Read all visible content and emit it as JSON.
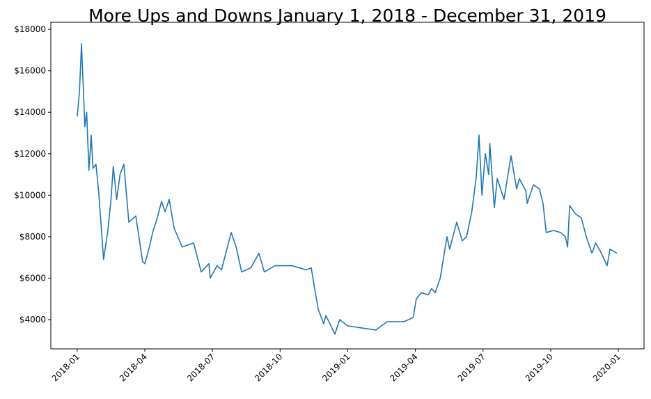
{
  "chart_data": {
    "type": "line",
    "title": "More Ups and Downs January 1, 2018 - December 31, 2019",
    "x": [
      0,
      0.1,
      0.19,
      0.27,
      0.34,
      0.42,
      0.52,
      0.62,
      0.7,
      0.83,
      0.95,
      1.17,
      1.36,
      1.5,
      1.6,
      1.75,
      1.9,
      2.07,
      2.29,
      2.6,
      2.9,
      3.0,
      3.2,
      3.37,
      3.55,
      3.74,
      3.9,
      4.08,
      4.3,
      4.66,
      5.16,
      5.5,
      5.84,
      5.9,
      6.2,
      6.4,
      6.83,
      7.05,
      7.29,
      7.7,
      8.06,
      8.3,
      8.77,
      9.54,
      10.16,
      10.38,
      10.53,
      10.69,
      10.93,
      11.03,
      11.43,
      11.64,
      12.0,
      12.6,
      13.25,
      13.74,
      14.49,
      14.9,
      15.04,
      15.26,
      15.57,
      15.72,
      15.88,
      16.1,
      16.4,
      16.52,
      16.83,
      17.08,
      17.27,
      17.5,
      17.7,
      17.82,
      17.95,
      18.1,
      18.25,
      18.3,
      18.5,
      18.63,
      18.93,
      19.24,
      19.49,
      19.61,
      19.9,
      19.96,
      20.23,
      20.5,
      20.66,
      20.8,
      21.13,
      21.44,
      21.65,
      21.75,
      21.84,
      22.1,
      22.36,
      22.58,
      22.83,
      22.99,
      23.2,
      23.5,
      23.63,
      23.94
    ],
    "series": [
      {
        "color": "#1f77b4",
        "values": [
          13800,
          15000,
          17300,
          15200,
          13300,
          14000,
          11200,
          12900,
          11300,
          11500,
          10200,
          6900,
          8300,
          9800,
          11400,
          9800,
          11000,
          11500,
          8700,
          9000,
          6800,
          6700,
          7500,
          8300,
          8900,
          9700,
          9200,
          9800,
          8400,
          7500,
          7700,
          6300,
          6700,
          6000,
          6600,
          6400,
          8200,
          7500,
          6300,
          6500,
          7200,
          6300,
          6600,
          6600,
          6400,
          6500,
          5500,
          4500,
          3800,
          4200,
          3300,
          4000,
          3700,
          3600,
          3500,
          3900,
          3900,
          4100,
          5000,
          5300,
          5200,
          5500,
          5300,
          6000,
          8000,
          7400,
          8700,
          7800,
          8000,
          9200,
          10900,
          12900,
          10000,
          12000,
          11000,
          12500,
          9400,
          10800,
          9800,
          11900,
          10300,
          10800,
          10200,
          9600,
          10500,
          10300,
          9600,
          8200,
          8300,
          8200,
          8000,
          7500,
          9500,
          9100,
          8900,
          8000,
          7200,
          7700,
          7300,
          6600,
          7400,
          7200
        ]
      }
    ],
    "xlim": [
      -1.17,
      25.14
    ],
    "xticks": [
      {
        "value": 0,
        "label": "2018-01"
      },
      {
        "value": 3,
        "label": "2018-04"
      },
      {
        "value": 6,
        "label": "2018-07"
      },
      {
        "value": 9,
        "label": "2018-10"
      },
      {
        "value": 12,
        "label": "2019-01"
      },
      {
        "value": 15,
        "label": "2019-04"
      },
      {
        "value": 18,
        "label": "2019-07"
      },
      {
        "value": 21,
        "label": "2019-10"
      },
      {
        "value": 24,
        "label": "2020-01"
      }
    ],
    "ylim": [
      2590,
      18340
    ],
    "yticks": [
      {
        "value": 4000,
        "label": "$4000"
      },
      {
        "value": 6000,
        "label": "$6000"
      },
      {
        "value": 8000,
        "label": "$8000"
      },
      {
        "value": 10000,
        "label": "$10000"
      },
      {
        "value": 12000,
        "label": "$12000"
      },
      {
        "value": 14000,
        "label": "$14000"
      },
      {
        "value": 16000,
        "label": "$16000"
      },
      {
        "value": 18000,
        "label": "$18000"
      }
    ]
  }
}
